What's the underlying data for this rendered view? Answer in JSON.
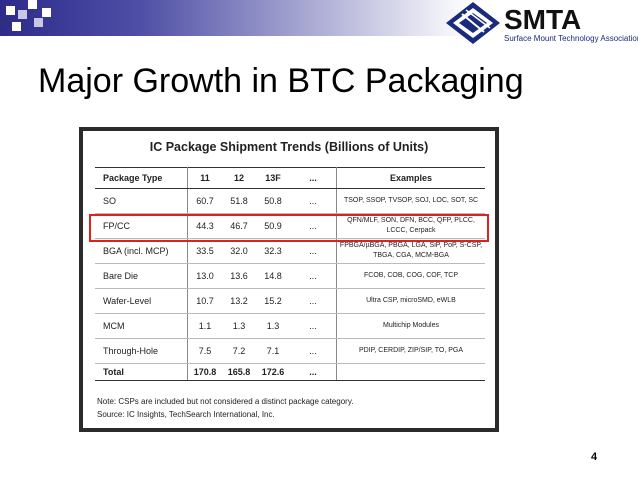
{
  "logo": {
    "name": "SMTA",
    "tagline": "Surface Mount Technology Association"
  },
  "slide": {
    "title": "Major Growth in BTC Packaging",
    "page_number": "4"
  },
  "table": {
    "title": "IC Package Shipment Trends (Billions of Units)",
    "headers": {
      "type": "Package Type",
      "y1": "11",
      "y2": "12",
      "y3": "13F",
      "dots": "...",
      "examples": "Examples"
    },
    "rows": [
      {
        "type": "SO",
        "y1": "60.7",
        "y2": "51.8",
        "y3": "50.8",
        "dots": "...",
        "examples": "TSOP, SSOP, TVSOP, SOJ, LOC, SOT, SC"
      },
      {
        "type": "FP/CC",
        "y1": "44.3",
        "y2": "46.7",
        "y3": "50.9",
        "dots": "...",
        "examples": "QFN/MLF, SON, DFN, BCC, QFP, PLCC, LCCC, Cerpack"
      },
      {
        "type": "BGA (incl. MCP)",
        "y1": "33.5",
        "y2": "32.0",
        "y3": "32.3",
        "dots": "...",
        "examples": "FPBGA/µBGA, PBGA, LGA, SiP, PoP, S-CSP, TBGA, CGA, MCM-BGA"
      },
      {
        "type": "Bare Die",
        "y1": "13.0",
        "y2": "13.6",
        "y3": "14.8",
        "dots": "...",
        "examples": "FCOB, COB, COG, COF, TCP"
      },
      {
        "type": "Wafer-Level",
        "y1": "10.7",
        "y2": "13.2",
        "y3": "15.2",
        "dots": "...",
        "examples": "Ultra CSP, microSMD, eWLB"
      },
      {
        "type": "MCM",
        "y1": "1.1",
        "y2": "1.3",
        "y3": "1.3",
        "dots": "...",
        "examples": "Multichip Modules"
      },
      {
        "type": "Through-Hole",
        "y1": "7.5",
        "y2": "7.2",
        "y3": "7.1",
        "dots": "...",
        "examples": "PDIP, CERDIP, ZIP/SIP, TO, PGA"
      }
    ],
    "total": {
      "type": "Total",
      "y1": "170.8",
      "y2": "165.8",
      "y3": "172.6",
      "dots": "..."
    },
    "note": "Note:  CSPs are included but not considered a distinct package category.",
    "source": "Source:  IC Insights, TechSearch International, Inc.",
    "highlighted_row": "FP/CC",
    "highlight_color": "#e02020"
  },
  "colors": {
    "banner_navy": "#2d2a8a",
    "logo_navy": "#1a2a7c"
  }
}
